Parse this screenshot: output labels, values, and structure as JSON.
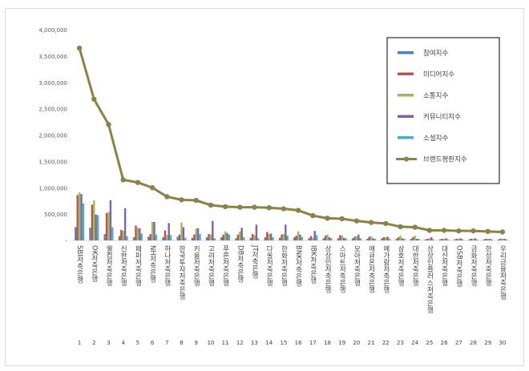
{
  "chart_data": {
    "type": "bar",
    "title": "",
    "xlabel": "",
    "ylabel": "",
    "ylim": [
      0,
      4000000
    ],
    "yticks": [
      "-",
      "500,000",
      "1,000,000",
      "1,500,000",
      "2,000,000",
      "2,500,000",
      "3,000,000",
      "3,500,000",
      "4,000,000"
    ],
    "grid": false,
    "legend_position": "right-inside",
    "categories": [
      "SBI저축은행",
      "OK저축은행",
      "웰컴저축은행",
      "신한저축은행",
      "페퍼저축은행",
      "NH저축은행",
      "하나저축은행",
      "한국투자저축은행",
      "키움저축은행",
      "고려저축은행",
      "푸른저축은행",
      "DB저축은행",
      "JT저축은행",
      "다올저축은행",
      "한화저축은행",
      "BNK저축은행",
      "IBK저축은행",
      "상상인저축은행",
      "스마트저축은행",
      "모아저축은행",
      "애큐온저축은행",
      "예가람저축은행",
      "삼호저축은행",
      "대한저축은행",
      "상상인플러스저축은행",
      "대신저축은행",
      "OSB저축은행",
      "금화저축은행",
      "한성저축은행",
      "우리금융저축은행"
    ],
    "ranks": [
      1,
      2,
      3,
      4,
      5,
      6,
      7,
      8,
      9,
      10,
      11,
      12,
      13,
      14,
      15,
      16,
      17,
      18,
      19,
      20,
      21,
      22,
      23,
      24,
      25,
      26,
      27,
      28,
      29,
      30
    ],
    "series": [
      {
        "name": "참여지수",
        "kind": "bar",
        "color": "#4f81bd",
        "values": [
          250000,
          240000,
          120000,
          80000,
          60000,
          70000,
          60000,
          70000,
          50000,
          60000,
          60000,
          40000,
          50000,
          60000,
          50000,
          60000,
          40000,
          40000,
          40000,
          40000,
          30000,
          40000,
          30000,
          30000,
          20000,
          20000,
          20000,
          20000,
          20000,
          20000
        ]
      },
      {
        "name": "미디어지수",
        "kind": "bar",
        "color": "#c0504d",
        "values": [
          860000,
          680000,
          520000,
          200000,
          280000,
          120000,
          190000,
          110000,
          110000,
          120000,
          110000,
          110000,
          120000,
          160000,
          110000,
          90000,
          80000,
          90000,
          100000,
          70000,
          70000,
          60000,
          60000,
          60000,
          30000,
          30000,
          30000,
          30000,
          30000,
          30000
        ]
      },
      {
        "name": "소통지수",
        "kind": "bar",
        "color": "#9bbb59",
        "values": [
          910000,
          760000,
          540000,
          180000,
          240000,
          350000,
          100000,
          340000,
          220000,
          110000,
          170000,
          170000,
          100000,
          120000,
          120000,
          170000,
          50000,
          110000,
          90000,
          80000,
          80000,
          60000,
          90000,
          90000,
          40000,
          30000,
          30000,
          30000,
          30000,
          30000
        ]
      },
      {
        "name": "커뮤니티지수",
        "kind": "bar",
        "color": "#8064a2",
        "values": [
          880000,
          490000,
          760000,
          610000,
          230000,
          350000,
          330000,
          250000,
          230000,
          370000,
          140000,
          240000,
          300000,
          130000,
          300000,
          110000,
          180000,
          60000,
          50000,
          110000,
          40000,
          70000,
          40000,
          30000,
          60000,
          40000,
          40000,
          40000,
          30000,
          30000
        ]
      },
      {
        "name": "소셜지수",
        "kind": "bar",
        "color": "#4bacc6",
        "values": [
          700000,
          480000,
          250000,
          80000,
          130000,
          110000,
          100000,
          50000,
          120000,
          40000,
          110000,
          60000,
          40000,
          60000,
          90000,
          60000,
          100000,
          40000,
          40000,
          40000,
          30000,
          30000,
          30000,
          30000,
          20000,
          20000,
          20000,
          20000,
          20000,
          20000
        ]
      },
      {
        "name": "브랜드평판지수",
        "kind": "line",
        "color": "#8b8245",
        "values": [
          3650000,
          2680000,
          2200000,
          1150000,
          1100000,
          1000000,
          830000,
          770000,
          760000,
          670000,
          640000,
          630000,
          630000,
          620000,
          600000,
          570000,
          470000,
          420000,
          410000,
          370000,
          340000,
          320000,
          260000,
          250000,
          190000,
          190000,
          180000,
          180000,
          170000,
          160000
        ]
      }
    ]
  }
}
